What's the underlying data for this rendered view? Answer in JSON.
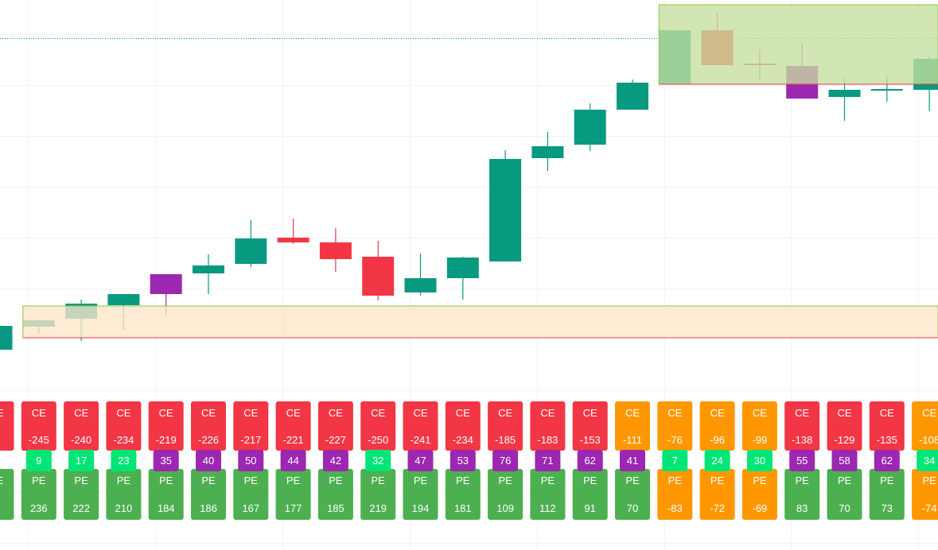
{
  "colors": {
    "bull": "#089981",
    "bear": "#f23645",
    "purple": "#9c27b0",
    "ce_box": "#f23645",
    "ce_box_alt": "#ff9800",
    "pe_box": "#4caf50",
    "pe_box_alt": "#ff9800",
    "count_green": "#00e676",
    "count_purple": "#9c27b0",
    "zone_top_fill": "#c5df9f",
    "zone_bottom_fill": "#fde6c6"
  },
  "chart_data": {
    "type": "candlestick",
    "title": "",
    "xlabel": "",
    "ylabel": "",
    "y_axis_visible": false,
    "grid": true,
    "ylim": [
      0,
      690
    ],
    "candles": [
      {
        "open": 250,
        "high": 280,
        "low": 240,
        "close": 280,
        "color": "bull"
      },
      {
        "open": 279,
        "high": 288,
        "low": 270,
        "close": 287,
        "color": "bull"
      },
      {
        "open": 289,
        "high": 313,
        "low": 261,
        "close": 308,
        "color": "bull"
      },
      {
        "open": 306,
        "high": 320,
        "low": 275,
        "close": 320,
        "color": "bull"
      },
      {
        "open": 320,
        "high": 345,
        "low": 294,
        "close": 345,
        "color": "purple"
      },
      {
        "open": 346,
        "high": 370,
        "low": 320,
        "close": 356,
        "color": "bull"
      },
      {
        "open": 358,
        "high": 413,
        "low": 354,
        "close": 390,
        "color": "bull"
      },
      {
        "open": 391,
        "high": 415,
        "low": 383,
        "close": 385,
        "color": "bear"
      },
      {
        "open": 385,
        "high": 403,
        "low": 348,
        "close": 364,
        "color": "bear"
      },
      {
        "open": 367,
        "high": 387,
        "low": 312,
        "close": 318,
        "color": "bear"
      },
      {
        "open": 322,
        "high": 371,
        "low": 318,
        "close": 340,
        "color": "bull"
      },
      {
        "open": 340,
        "high": 367,
        "low": 313,
        "close": 366,
        "color": "bull"
      },
      {
        "open": 361,
        "high": 501,
        "low": 361,
        "close": 490,
        "color": "bull"
      },
      {
        "open": 491,
        "high": 524,
        "low": 475,
        "close": 506,
        "color": "bull"
      },
      {
        "open": 508,
        "high": 560,
        "low": 500,
        "close": 552,
        "color": "bull"
      },
      {
        "open": 552,
        "high": 590,
        "low": 552,
        "close": 586,
        "color": "bull"
      },
      {
        "open": 584,
        "high": 652,
        "low": 584,
        "close": 652,
        "color": "bull"
      },
      {
        "open": 652,
        "high": 674,
        "low": 608,
        "close": 608,
        "color": "bear"
      },
      {
        "open": 610,
        "high": 628,
        "low": 590,
        "close": 608,
        "color": "bear"
      },
      {
        "open": 607,
        "high": 636,
        "low": 566,
        "close": 566,
        "color": "purple"
      },
      {
        "open": 568,
        "high": 591,
        "low": 538,
        "close": 577,
        "color": "bull"
      },
      {
        "open": 577,
        "high": 594,
        "low": 562,
        "close": 578,
        "color": "bull"
      },
      {
        "open": 577,
        "high": 619,
        "low": 550,
        "close": 616,
        "color": "bull"
      }
    ],
    "zones": [
      {
        "name": "upper",
        "from": 584,
        "to": 684,
        "x_start": 16
      },
      {
        "name": "lower",
        "from": 265,
        "to": 305,
        "x_start": 1
      }
    ],
    "price_line": 642
  },
  "labels": [
    {
      "ce_tag": "CE",
      "ce": "",
      "count": "",
      "pe_tag": "PE",
      "pe": "",
      "ce_alt": false,
      "pe_alt": false,
      "count_alt": false
    },
    {
      "ce_tag": "CE",
      "ce": "-245",
      "count": "9",
      "pe_tag": "PE",
      "pe": "236",
      "ce_alt": false,
      "pe_alt": false,
      "count_alt": false
    },
    {
      "ce_tag": "CE",
      "ce": "-240",
      "count": "17",
      "pe_tag": "PE",
      "pe": "222",
      "ce_alt": false,
      "pe_alt": false,
      "count_alt": false
    },
    {
      "ce_tag": "CE",
      "ce": "-234",
      "count": "23",
      "pe_tag": "PE",
      "pe": "210",
      "ce_alt": false,
      "pe_alt": false,
      "count_alt": false
    },
    {
      "ce_tag": "CE",
      "ce": "-219",
      "count": "35",
      "pe_tag": "PE",
      "pe": "184",
      "ce_alt": false,
      "pe_alt": false,
      "count_alt": true
    },
    {
      "ce_tag": "CE",
      "ce": "-226",
      "count": "40",
      "pe_tag": "PE",
      "pe": "186",
      "ce_alt": false,
      "pe_alt": false,
      "count_alt": true
    },
    {
      "ce_tag": "CE",
      "ce": "-217",
      "count": "50",
      "pe_tag": "PE",
      "pe": "167",
      "ce_alt": false,
      "pe_alt": false,
      "count_alt": true
    },
    {
      "ce_tag": "CE",
      "ce": "-221",
      "count": "44",
      "pe_tag": "PE",
      "pe": "177",
      "ce_alt": false,
      "pe_alt": false,
      "count_alt": true
    },
    {
      "ce_tag": "CE",
      "ce": "-227",
      "count": "42",
      "pe_tag": "PE",
      "pe": "185",
      "ce_alt": false,
      "pe_alt": false,
      "count_alt": true
    },
    {
      "ce_tag": "CE",
      "ce": "-250",
      "count": "32",
      "pe_tag": "PE",
      "pe": "219",
      "ce_alt": false,
      "pe_alt": false,
      "count_alt": false
    },
    {
      "ce_tag": "CE",
      "ce": "-241",
      "count": "47",
      "pe_tag": "PE",
      "pe": "194",
      "ce_alt": false,
      "pe_alt": false,
      "count_alt": true
    },
    {
      "ce_tag": "CE",
      "ce": "-234",
      "count": "53",
      "pe_tag": "PE",
      "pe": "181",
      "ce_alt": false,
      "pe_alt": false,
      "count_alt": true
    },
    {
      "ce_tag": "CE",
      "ce": "-185",
      "count": "76",
      "pe_tag": "PE",
      "pe": "109",
      "ce_alt": false,
      "pe_alt": false,
      "count_alt": true
    },
    {
      "ce_tag": "CE",
      "ce": "-183",
      "count": "71",
      "pe_tag": "PE",
      "pe": "112",
      "ce_alt": false,
      "pe_alt": false,
      "count_alt": true
    },
    {
      "ce_tag": "CE",
      "ce": "-153",
      "count": "62",
      "pe_tag": "PE",
      "pe": "91",
      "ce_alt": false,
      "pe_alt": false,
      "count_alt": true
    },
    {
      "ce_tag": "CE",
      "ce": "-111",
      "count": "41",
      "pe_tag": "PE",
      "pe": "70",
      "ce_alt": true,
      "pe_alt": false,
      "count_alt": true
    },
    {
      "ce_tag": "CE",
      "ce": "-76",
      "count": "7",
      "pe_tag": "PE",
      "pe": "-83",
      "ce_alt": true,
      "pe_alt": true,
      "count_alt": false
    },
    {
      "ce_tag": "CE",
      "ce": "-96",
      "count": "24",
      "pe_tag": "PE",
      "pe": "-72",
      "ce_alt": true,
      "pe_alt": true,
      "count_alt": false
    },
    {
      "ce_tag": "CE",
      "ce": "-99",
      "count": "30",
      "pe_tag": "PE",
      "pe": "-69",
      "ce_alt": true,
      "pe_alt": true,
      "count_alt": false
    },
    {
      "ce_tag": "CE",
      "ce": "-138",
      "count": "55",
      "pe_tag": "PE",
      "pe": "83",
      "ce_alt": false,
      "pe_alt": false,
      "count_alt": true
    },
    {
      "ce_tag": "CE",
      "ce": "-129",
      "count": "58",
      "pe_tag": "PE",
      "pe": "70",
      "ce_alt": false,
      "pe_alt": false,
      "count_alt": true
    },
    {
      "ce_tag": "CE",
      "ce": "-135",
      "count": "62",
      "pe_tag": "PE",
      "pe": "73",
      "ce_alt": false,
      "pe_alt": false,
      "count_alt": true
    },
    {
      "ce_tag": "CE",
      "ce": "-108",
      "count": "34",
      "pe_tag": "PE",
      "pe": "-74",
      "ce_alt": true,
      "pe_alt": true,
      "count_alt": false
    }
  ]
}
